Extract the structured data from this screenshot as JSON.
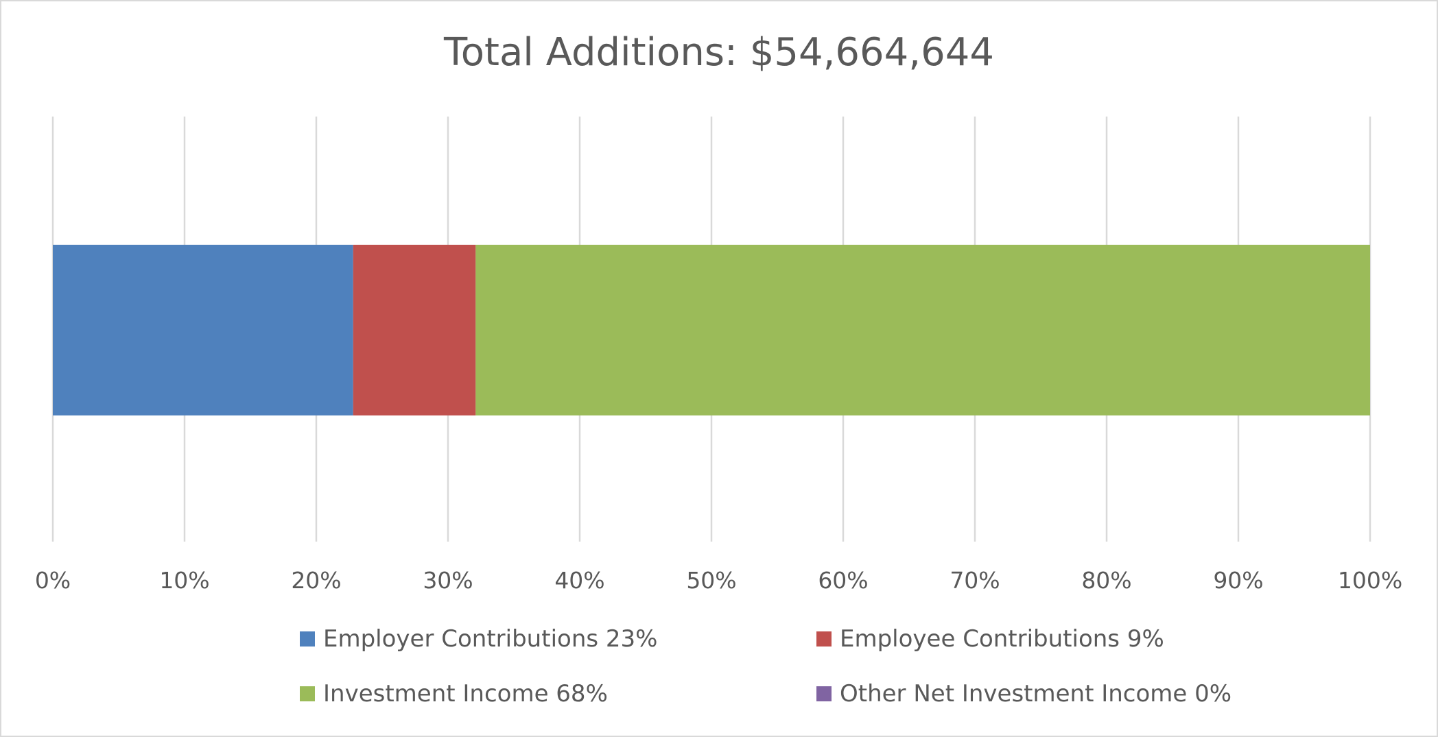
{
  "chart_data": {
    "type": "bar",
    "orientation": "horizontal",
    "stacked": true,
    "stack_mode": "percent",
    "title": "Total Additions: $54,664,644",
    "categories": [
      ""
    ],
    "series": [
      {
        "name": "Employer Contributions 23%",
        "values": [
          22.8
        ],
        "color": "#4F81BD"
      },
      {
        "name": "Employee Contributions 9%",
        "values": [
          9.3
        ],
        "color": "#C0504D"
      },
      {
        "name": "Investment Income 68%",
        "values": [
          67.9
        ],
        "color": "#9BBB59"
      },
      {
        "name": "Other Net Investment Income 0%",
        "values": [
          0
        ],
        "color": "#8064A2"
      }
    ],
    "xlim": [
      0,
      100
    ],
    "xticks": [
      "0%",
      "10%",
      "20%",
      "30%",
      "40%",
      "50%",
      "60%",
      "70%",
      "80%",
      "90%",
      "100%"
    ],
    "grid": true,
    "grid_color": "#d9d9d9",
    "legend_position": "bottom"
  }
}
